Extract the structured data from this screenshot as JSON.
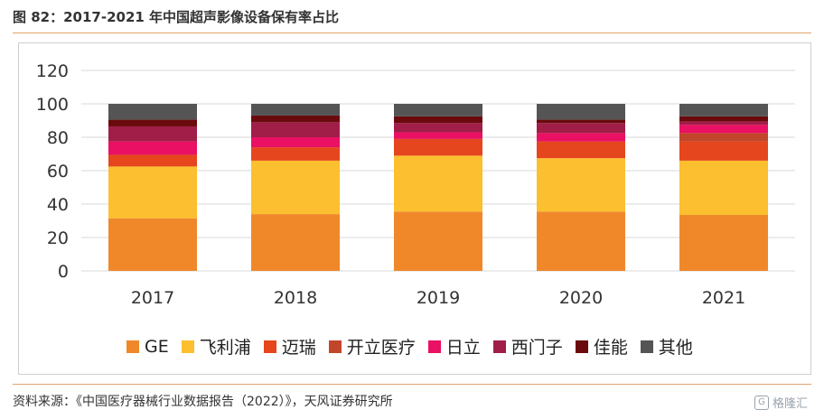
{
  "header": {
    "title": "图 82：2017-2021 年中国超声影像设备保有率占比"
  },
  "footer": {
    "source": "资料来源：《中国医疗器械行业数据报告（2022）》，天风证券研究所",
    "watermark": "格隆汇"
  },
  "chart_data": {
    "type": "bar",
    "stacked": true,
    "categories": [
      "2017",
      "2018",
      "2019",
      "2020",
      "2021"
    ],
    "ylim": [
      0,
      120
    ],
    "yticks": [
      0,
      20,
      40,
      60,
      80,
      100,
      120
    ],
    "grid": true,
    "legend_position": "bottom",
    "series": [
      {
        "name": "GE",
        "color": "#f0882a",
        "values": [
          31.5,
          34,
          35.5,
          35.5,
          33.5
        ]
      },
      {
        "name": "飞利浦",
        "color": "#fbbf2f",
        "values": [
          31,
          32,
          33.5,
          32,
          32.5
        ]
      },
      {
        "name": "迈瑞",
        "color": "#e5461e",
        "values": [
          7,
          8,
          10,
          10,
          11.5
        ]
      },
      {
        "name": "开立医疗",
        "color": "#c2462a",
        "values": [
          0,
          0,
          0,
          0,
          5
        ]
      },
      {
        "name": "日立",
        "color": "#ea1063",
        "values": [
          8,
          6,
          4,
          5,
          5
        ]
      },
      {
        "name": "西门子",
        "color": "#a01e48",
        "values": [
          9,
          9,
          5.5,
          6,
          2
        ]
      },
      {
        "name": "佳能",
        "color": "#6a0a0c",
        "values": [
          4,
          4,
          4,
          2,
          3
        ]
      },
      {
        "name": "其他",
        "color": "#555555",
        "values": [
          9.5,
          7,
          7.5,
          9.5,
          7.5
        ]
      }
    ]
  }
}
